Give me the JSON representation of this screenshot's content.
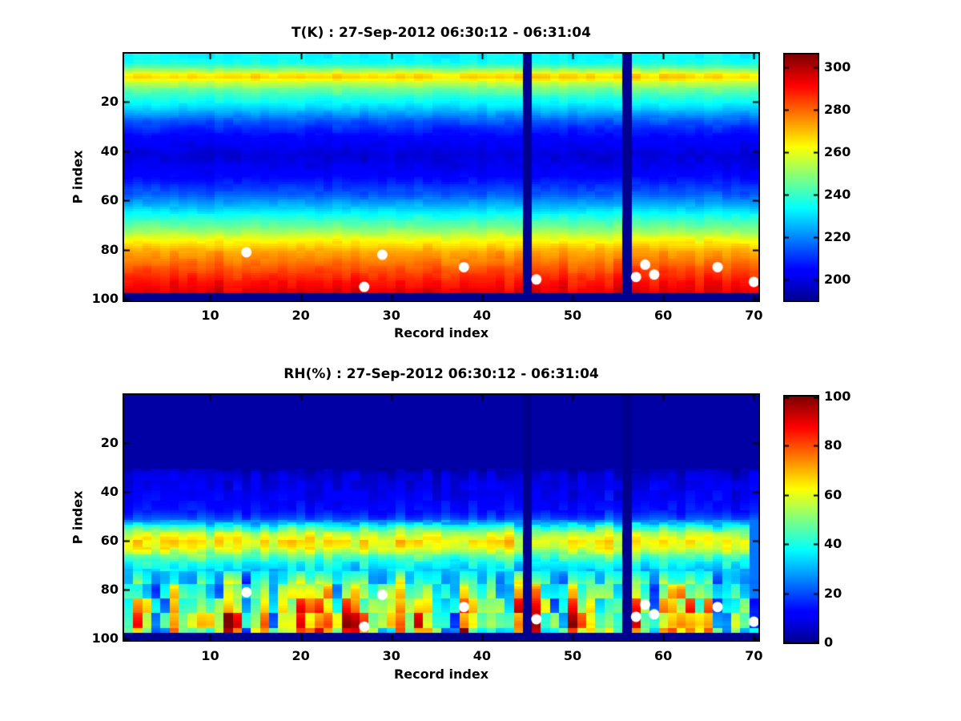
{
  "figure": {
    "background": "#FFFFFF",
    "axis_color": "#000000",
    "gap_color": "#00008F",
    "marker_color": "#FFFFFF"
  },
  "chart_data": [
    {
      "type": "heatmap",
      "id": "temperature",
      "title": "T(K) : 27-Sep-2012 06:30:12 - 06:31:04",
      "xlabel": "Record index",
      "ylabel": "P index",
      "x_range": [
        1,
        70
      ],
      "y_range": [
        1,
        100
      ],
      "y_direction": "reversed",
      "x_ticks": [
        10,
        20,
        30,
        40,
        50,
        60,
        70
      ],
      "y_ticks": [
        20,
        40,
        60,
        80,
        100
      ],
      "colormap": "jet",
      "clim": [
        190,
        306
      ],
      "colorbar_ticks": [
        200,
        220,
        240,
        260,
        280,
        300
      ],
      "missing_records": [
        45,
        56
      ],
      "missing_rows_from_p": 98,
      "profile": [
        [
          1,
          233
        ],
        [
          4,
          235
        ],
        [
          6,
          243
        ],
        [
          8,
          257
        ],
        [
          9,
          264
        ],
        [
          10,
          266
        ],
        [
          12,
          257
        ],
        [
          15,
          246
        ],
        [
          19,
          236
        ],
        [
          23,
          227
        ],
        [
          28,
          214
        ],
        [
          34,
          204
        ],
        [
          42,
          198
        ],
        [
          50,
          204
        ],
        [
          57,
          214
        ],
        [
          63,
          227
        ],
        [
          68,
          240
        ],
        [
          72,
          250
        ],
        [
          76,
          262
        ],
        [
          80,
          271
        ],
        [
          86,
          280
        ],
        [
          91,
          287
        ],
        [
          95,
          292
        ],
        [
          97,
          295
        ]
      ],
      "markers": {
        "symbol": "circle",
        "color": "#FFFFFF",
        "points": [
          [
            14,
            81
          ],
          [
            27,
            95
          ],
          [
            29,
            82
          ],
          [
            38,
            87
          ],
          [
            46,
            92
          ],
          [
            57,
            91
          ],
          [
            58,
            86
          ],
          [
            59,
            90
          ],
          [
            66,
            87
          ],
          [
            70,
            93
          ]
        ]
      }
    },
    {
      "type": "heatmap",
      "id": "relative-humidity",
      "title": "RH(%) : 27-Sep-2012 06:30:12 - 06:31:04",
      "xlabel": "Record index",
      "ylabel": "P index",
      "x_range": [
        1,
        70
      ],
      "y_range": [
        1,
        100
      ],
      "y_direction": "reversed",
      "x_ticks": [
        10,
        20,
        30,
        40,
        50,
        60,
        70
      ],
      "y_ticks": [
        20,
        40,
        60,
        80,
        100
      ],
      "colormap": "jet",
      "clim": [
        0,
        100
      ],
      "colorbar_ticks": [
        0,
        20,
        40,
        60,
        80,
        100
      ],
      "missing_records": [
        45,
        56
      ],
      "missing_rows_from_p": 98,
      "low_columns": [
        70
      ],
      "profile": [
        [
          1,
          2
        ],
        [
          30,
          2
        ],
        [
          33,
          7
        ],
        [
          38,
          9
        ],
        [
          43,
          11
        ],
        [
          48,
          14
        ],
        [
          51,
          20
        ],
        [
          54,
          38
        ],
        [
          57,
          55
        ],
        [
          60,
          64
        ],
        [
          63,
          60
        ],
        [
          66,
          48
        ],
        [
          69,
          39
        ],
        [
          72,
          34
        ],
        [
          75,
          36
        ],
        [
          78,
          41
        ],
        [
          82,
          46
        ],
        [
          86,
          50
        ],
        [
          90,
          54
        ],
        [
          94,
          58
        ],
        [
          97,
          52
        ]
      ],
      "markers": {
        "symbol": "circle",
        "color": "#FFFFFF",
        "points": [
          [
            14,
            81
          ],
          [
            27,
            95
          ],
          [
            29,
            82
          ],
          [
            38,
            87
          ],
          [
            46,
            92
          ],
          [
            57,
            91
          ],
          [
            58,
            86
          ],
          [
            59,
            90
          ],
          [
            66,
            87
          ],
          [
            70,
            93
          ]
        ]
      }
    }
  ]
}
